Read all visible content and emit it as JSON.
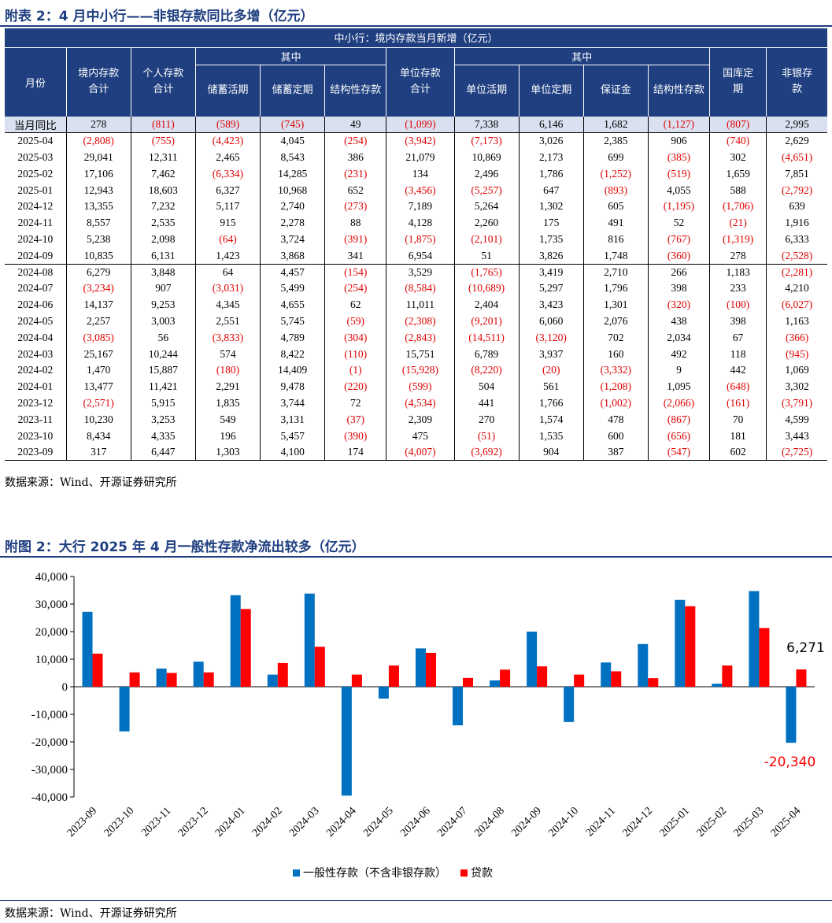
{
  "table_section": {
    "title": "附表 2：4 月中小行——非银存款同比多增（亿元）",
    "banner": "中小行：境内存款当月新增（亿元）",
    "headers": {
      "month": "月份",
      "domestic_total": "境内存款合计",
      "personal_total": "个人存款合计",
      "of_which_1": "其中",
      "savings_demand": "储蓄活期",
      "savings_time": "储蓄定期",
      "structured_1": "结构性存款",
      "unit_total": "单位存款合计",
      "of_which_2": "其中",
      "unit_demand": "单位活期",
      "unit_time": "单位定期",
      "margin": "保证金",
      "structured_2": "结构性存款",
      "treasury_time": "国库定期",
      "nonbank": "非银存款"
    },
    "yoy_row": [
      "当月同比",
      "278",
      "(811)",
      "(589)",
      "(745)",
      "49",
      "(1,099)",
      "7,338",
      "6,146",
      "1,682",
      "(1,127)",
      "(807)",
      "2,995"
    ],
    "rows": [
      [
        "2025-04",
        "(2,808)",
        "(755)",
        "(4,423)",
        "4,045",
        "(254)",
        "(3,942)",
        "(7,173)",
        "3,026",
        "2,385",
        "906",
        "(740)",
        "2,629"
      ],
      [
        "2025-03",
        "29,041",
        "12,311",
        "2,465",
        "8,543",
        "386",
        "21,079",
        "10,869",
        "2,173",
        "699",
        "(385)",
        "302",
        "(4,651)"
      ],
      [
        "2025-02",
        "17,106",
        "7,462",
        "(6,334)",
        "14,285",
        "(231)",
        "134",
        "2,496",
        "1,786",
        "(1,252)",
        "(519)",
        "1,659",
        "7,851"
      ],
      [
        "2025-01",
        "12,943",
        "18,603",
        "6,327",
        "10,968",
        "652",
        "(3,456)",
        "(5,257)",
        "647",
        "(893)",
        "4,055",
        "588",
        "(2,792)"
      ],
      [
        "2024-12",
        "13,355",
        "7,232",
        "5,117",
        "2,740",
        "(273)",
        "7,189",
        "5,264",
        "1,302",
        "605",
        "(1,195)",
        "(1,706)",
        "639"
      ],
      [
        "2024-11",
        "8,557",
        "2,535",
        "915",
        "2,278",
        "88",
        "4,128",
        "2,260",
        "175",
        "491",
        "52",
        "(21)",
        "1,916"
      ],
      [
        "2024-10",
        "5,238",
        "2,098",
        "(64)",
        "3,724",
        "(391)",
        "(1,875)",
        "(2,101)",
        "1,735",
        "816",
        "(767)",
        "(1,319)",
        "6,333"
      ],
      [
        "2024-09",
        "10,835",
        "6,131",
        "1,423",
        "3,868",
        "341",
        "6,954",
        "51",
        "3,826",
        "1,748",
        "(360)",
        "278",
        "(2,528)"
      ],
      [
        "2024-08",
        "6,279",
        "3,848",
        "64",
        "4,457",
        "(154)",
        "3,529",
        "(1,765)",
        "3,419",
        "2,710",
        "266",
        "1,183",
        "(2,281)"
      ],
      [
        "2024-07",
        "(3,234)",
        "907",
        "(3,031)",
        "5,499",
        "(254)",
        "(8,584)",
        "(10,689)",
        "5,297",
        "1,796",
        "398",
        "233",
        "4,210"
      ],
      [
        "2024-06",
        "14,137",
        "9,253",
        "4,345",
        "4,655",
        "62",
        "11,011",
        "2,404",
        "3,423",
        "1,301",
        "(320)",
        "(100)",
        "(6,027)"
      ],
      [
        "2024-05",
        "2,257",
        "3,003",
        "2,551",
        "5,745",
        "(59)",
        "(2,308)",
        "(9,201)",
        "6,060",
        "2,076",
        "438",
        "398",
        "1,163"
      ],
      [
        "2024-04",
        "(3,085)",
        "56",
        "(3,833)",
        "4,789",
        "(304)",
        "(2,843)",
        "(14,511)",
        "(3,120)",
        "702",
        "2,034",
        "67",
        "(366)"
      ],
      [
        "2024-03",
        "25,167",
        "10,244",
        "574",
        "8,422",
        "(110)",
        "15,751",
        "6,789",
        "3,937",
        "160",
        "492",
        "118",
        "(945)"
      ],
      [
        "2024-02",
        "1,470",
        "15,887",
        "(180)",
        "14,409",
        "(1)",
        "(15,928)",
        "(8,220)",
        "(20)",
        "(3,332)",
        "9",
        "442",
        "1,069"
      ],
      [
        "2024-01",
        "13,477",
        "11,421",
        "2,291",
        "9,478",
        "(220)",
        "(599)",
        "504",
        "561",
        "(1,208)",
        "1,095",
        "(648)",
        "3,302"
      ],
      [
        "2023-12",
        "(2,571)",
        "5,915",
        "1,835",
        "3,744",
        "72",
        "(4,534)",
        "441",
        "1,766",
        "(1,002)",
        "(2,066)",
        "(161)",
        "(3,791)"
      ],
      [
        "2023-11",
        "10,230",
        "3,253",
        "549",
        "3,131",
        "(37)",
        "2,309",
        "270",
        "1,574",
        "478",
        "(867)",
        "70",
        "4,599"
      ],
      [
        "2023-10",
        "8,434",
        "4,335",
        "196",
        "5,457",
        "(390)",
        "475",
        "(51)",
        "1,535",
        "600",
        "(656)",
        "181",
        "3,443"
      ],
      [
        "2023-09",
        "317",
        "6,447",
        "1,303",
        "4,100",
        "174",
        "(4,007)",
        "(3,692)",
        "904",
        "387",
        "(547)",
        "602",
        "(2,725)"
      ]
    ],
    "source": "数据来源：Wind、开源证券研究所"
  },
  "chart_section": {
    "title": "附图 2：大行 2025 年 4 月一般性存款净流出较多（亿元）",
    "source": "数据来源：Wind、开源证券研究所"
  },
  "colors": {
    "navy": "#1f3f80",
    "deposit_blue": "#0070c0",
    "loan_red": "#ff0000",
    "negative_red": "#e00000"
  },
  "chart_data": {
    "type": "bar",
    "categories": [
      "2023-09",
      "2023-10",
      "2023-11",
      "2023-12",
      "2024-01",
      "2024-02",
      "2024-03",
      "2024-04",
      "2024-05",
      "2024-06",
      "2024-07",
      "2024-08",
      "2024-09",
      "2024-10",
      "2024-11",
      "2024-12",
      "2025-01",
      "2025-02",
      "2025-03",
      "2025-04"
    ],
    "series": [
      {
        "name": "一般性存款（不含非银存款）",
        "color": "#0070c0",
        "values": [
          27200,
          -16200,
          6600,
          9100,
          33200,
          4400,
          33800,
          -39500,
          -4300,
          13900,
          -14000,
          2300,
          20000,
          -12800,
          8800,
          15500,
          31500,
          1100,
          34700,
          -20340
        ]
      },
      {
        "name": "贷款",
        "color": "#ff0000",
        "values": [
          12000,
          5200,
          5000,
          5200,
          28200,
          8600,
          14500,
          4400,
          7700,
          12300,
          3200,
          6200,
          7400,
          4400,
          5600,
          3100,
          29200,
          7700,
          21300,
          6271
        ]
      }
    ],
    "yticks": [
      "40,000",
      "30,000",
      "20,000",
      "10,000",
      "0",
      "-10,000",
      "-20,000",
      "-30,000",
      "-40,000"
    ],
    "ylim": [
      -40000,
      40000
    ],
    "annotations": [
      {
        "text": "6,271",
        "color": "#000000"
      },
      {
        "text": "-20,340",
        "color": "#ff0000"
      }
    ],
    "xlabel": "",
    "ylabel": "",
    "grid": false,
    "legend": "bottom"
  }
}
